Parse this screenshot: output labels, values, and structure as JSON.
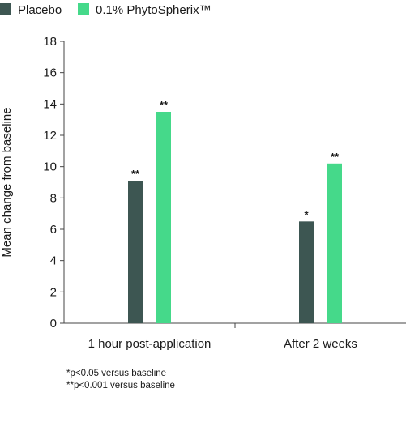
{
  "legend": [
    {
      "label": "Placebo",
      "color": "#3d5652"
    },
    {
      "label": "0.1% PhytoSpherix™",
      "color": "#45d98a"
    }
  ],
  "footnotes": [
    "*p<0.05 versus baseline",
    "**p<0.001 versus baseline"
  ],
  "chart_data": {
    "type": "bar",
    "title": "",
    "xlabel": "",
    "ylabel": "Mean change from baseline",
    "ylim": [
      0,
      18
    ],
    "yticks": [
      0,
      2,
      4,
      6,
      8,
      10,
      12,
      14,
      16,
      18
    ],
    "categories": [
      "1 hour post-application",
      "After 2 weeks"
    ],
    "series": [
      {
        "name": "Placebo",
        "color": "#3d5652",
        "values": [
          9.1,
          6.5
        ],
        "annotations": [
          "**",
          "*"
        ]
      },
      {
        "name": "0.1% PhytoSpherix™",
        "color": "#45d98a",
        "values": [
          13.5,
          10.2
        ],
        "annotations": [
          "**",
          "**"
        ]
      }
    ],
    "grid": false,
    "legend_position": "top-left"
  }
}
